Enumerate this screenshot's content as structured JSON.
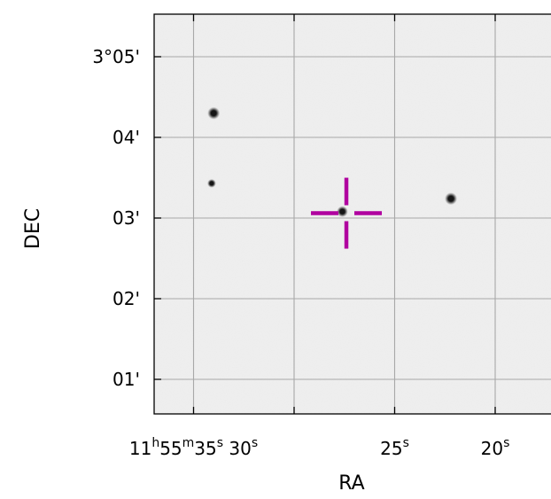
{
  "chart_data": {
    "type": "scatter",
    "title": "",
    "xlabel": "RA",
    "ylabel": "DEC",
    "grid": true,
    "x_ticks": [
      {
        "value": 35,
        "parts": [
          {
            "t": "11",
            "sup": false
          },
          {
            "t": "h",
            "sup": true
          },
          {
            "t": "55",
            "sup": false
          },
          {
            "t": "m",
            "sup": true
          },
          {
            "t": "35",
            "sup": false
          },
          {
            "t": "s",
            "sup": true
          },
          {
            "t": " 30",
            "sup": false
          },
          {
            "t": "s",
            "sup": true
          }
        ]
      },
      {
        "value": 25,
        "parts": [
          {
            "t": "25",
            "sup": false
          },
          {
            "t": "s",
            "sup": true
          }
        ]
      },
      {
        "value": 20,
        "parts": [
          {
            "t": "20",
            "sup": false
          },
          {
            "t": "s",
            "sup": true
          }
        ]
      }
    ],
    "x_grid": [
      35,
      30,
      25,
      20
    ],
    "y_ticks": [
      {
        "value": 5,
        "label": "3°05'"
      },
      {
        "value": 4,
        "label": "04'"
      },
      {
        "value": 3,
        "label": "03'"
      },
      {
        "value": 2,
        "label": "02'"
      },
      {
        "value": 1,
        "label": "01'"
      }
    ],
    "sources": [
      {
        "ra": 34.0,
        "dec": 4.3,
        "size": 1.0
      },
      {
        "ra": 34.1,
        "dec": 3.43,
        "size": 0.7
      },
      {
        "ra": 27.6,
        "dec": 3.08,
        "size": 0.9
      },
      {
        "ra": 22.2,
        "dec": 3.24,
        "size": 1.0
      }
    ],
    "target": {
      "ra": 27.4,
      "dec": 3.06,
      "color": "#b0009f"
    },
    "colors": {
      "background": "#f0f0f0",
      "grid": "#a8a8a8",
      "source": "#151515"
    }
  }
}
